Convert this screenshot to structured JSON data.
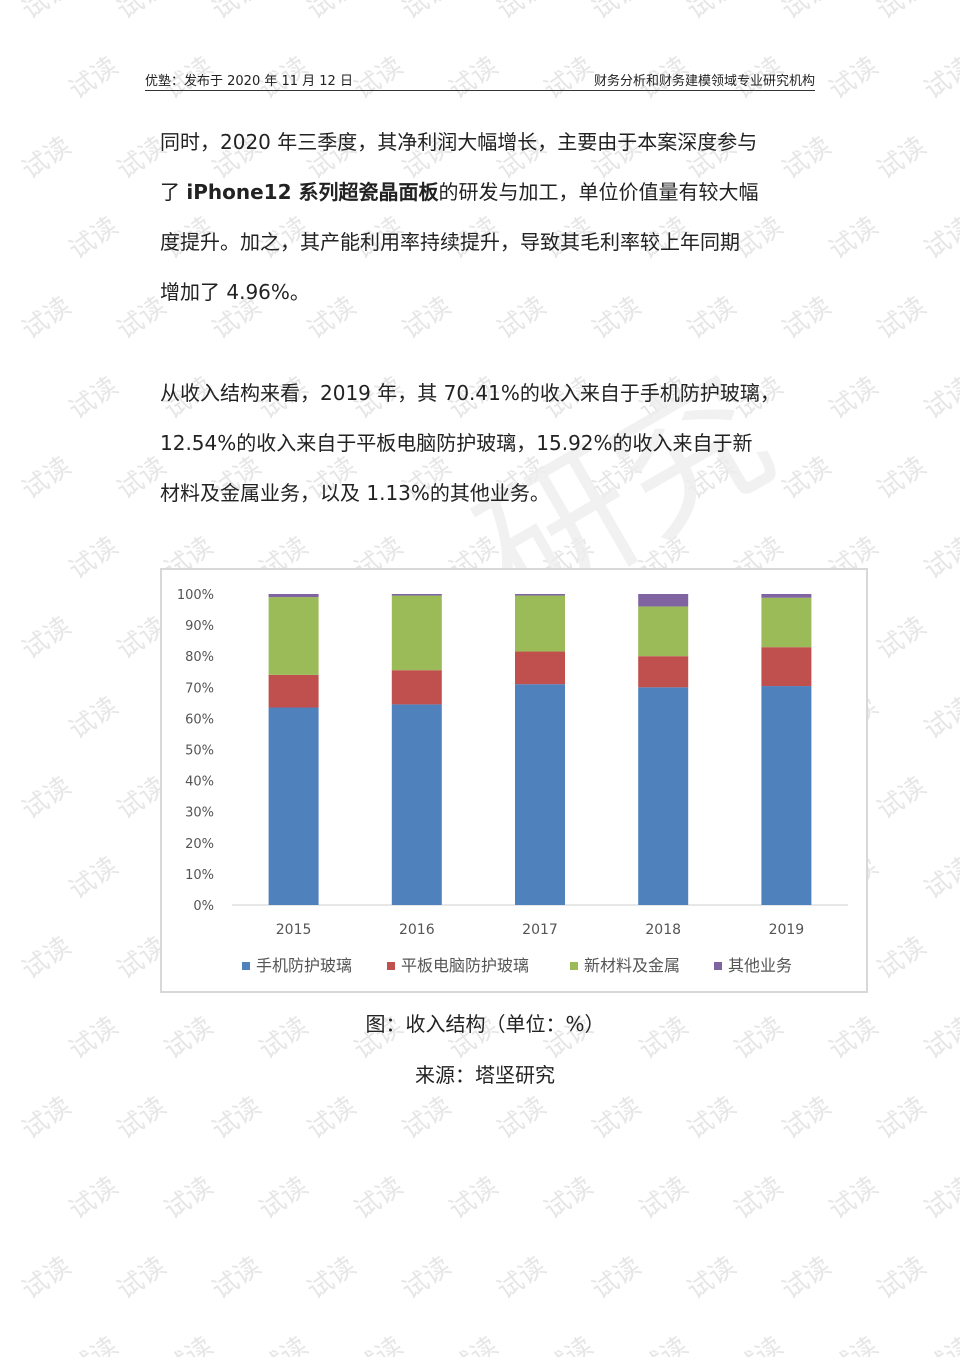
{
  "header": {
    "left": "优塾：发布于 2020 年 11 月 12 日",
    "right": "财务分析和财务建模领域专业研究机构"
  },
  "paragraph1": {
    "line1": "同时，2020 年三季度，其净利润大幅增长，主要由于本案深度参与",
    "line2_pre": "了 ",
    "line2_bold": "iPhone12 系列超瓷晶面板",
    "line2_post": "的研发与加工，单位价值量有较大幅",
    "line3": "度提升。加之，其产能利用率持续提升，导致其毛利率较上年同期",
    "line4": "增加了 4.96%。"
  },
  "paragraph2": {
    "line1": "从收入结构来看，2019 年，其 70.41%的收入来自于手机防护玻璃，",
    "line2": "12.54%的收入来自于平板电脑防护玻璃，15.92%的收入来自于新",
    "line3": "材料及金属业务，以及 1.13%的其他业务。"
  },
  "chart_data": {
    "type": "bar",
    "stacked": true,
    "categories": [
      "2015",
      "2016",
      "2017",
      "2018",
      "2019"
    ],
    "series": [
      {
        "name": "手机防护玻璃",
        "color": "#4f81bd",
        "values": [
          63.5,
          64.5,
          71.0,
          70.0,
          70.4
        ]
      },
      {
        "name": "平板电脑防护玻璃",
        "color": "#c0504d",
        "values": [
          10.5,
          11.0,
          10.5,
          10.0,
          12.5
        ]
      },
      {
        "name": "新材料及金属",
        "color": "#9bbb59",
        "values": [
          25.0,
          24.0,
          18.0,
          16.0,
          15.9
        ]
      },
      {
        "name": "其他业务",
        "color": "#8064a2",
        "values": [
          1.0,
          0.5,
          0.5,
          4.0,
          1.2
        ]
      }
    ],
    "y_ticks": [
      "0%",
      "10%",
      "20%",
      "30%",
      "40%",
      "50%",
      "60%",
      "70%",
      "80%",
      "90%",
      "100%"
    ],
    "ylim": [
      0,
      100
    ],
    "legend_position": "bottom"
  },
  "caption": {
    "title": "图：收入结构（单位：%）",
    "source": "来源：塔坚研究"
  },
  "watermark": {
    "text": "试读",
    "big": "研究",
    "color": "#e6e6e6"
  }
}
